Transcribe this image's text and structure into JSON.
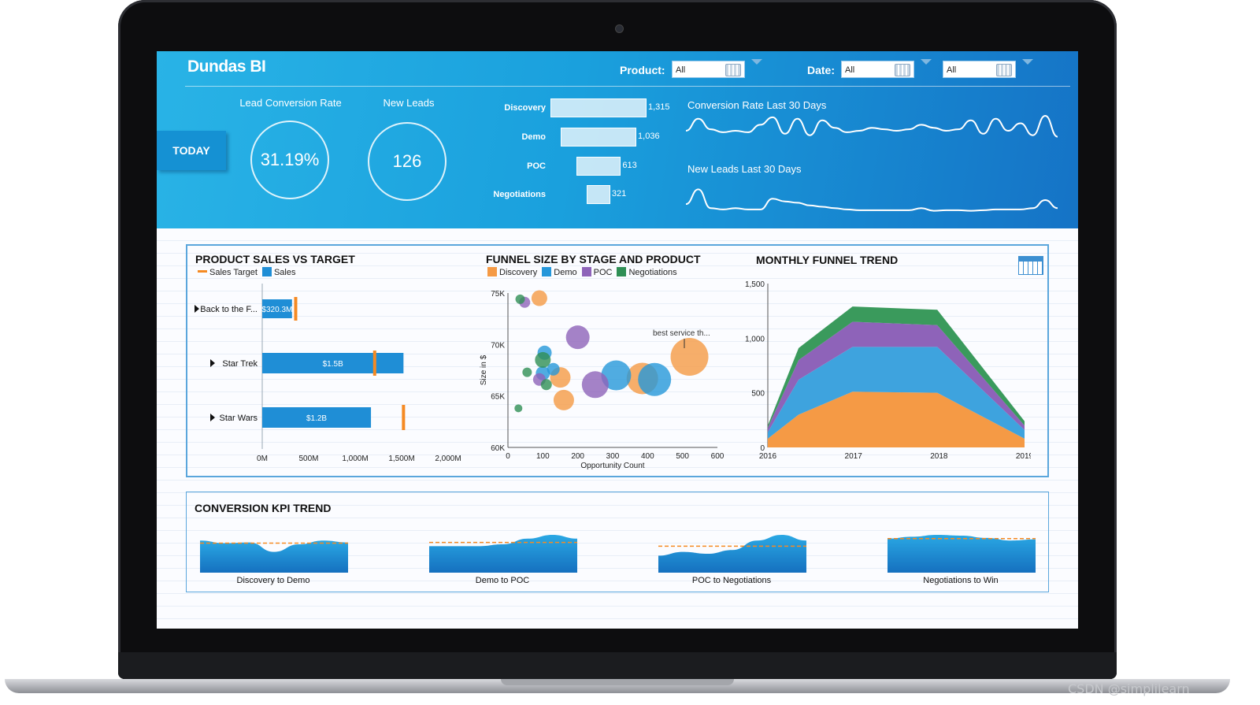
{
  "watermark": "CSDN @simplilearn",
  "header": {
    "logo": "Dundas BI",
    "filters": {
      "product_label": "Product:",
      "product_value": "All",
      "date_label": "Date:",
      "date_from": "All",
      "date_to": "All"
    },
    "today_button": "TODAY",
    "kpis": [
      {
        "title": "Lead Conversion Rate",
        "value": "31.19%"
      },
      {
        "title": "New Leads",
        "value": "126"
      }
    ],
    "funnel": [
      {
        "stage": "Discovery",
        "value": 1315,
        "label": "1,315"
      },
      {
        "stage": "Demo",
        "value": 1036,
        "label": "1,036"
      },
      {
        "stage": "POC",
        "value": 613,
        "label": "613"
      },
      {
        "stage": "Negotiations",
        "value": 321,
        "label": "321"
      }
    ],
    "sparklines": [
      {
        "title": "Conversion Rate Last 30 Days",
        "values": [
          0.5,
          0.9,
          0.55,
          0.45,
          0.5,
          0.45,
          0.7,
          0.95,
          0.4,
          0.9,
          0.35,
          0.85,
          0.6,
          0.45,
          0.5,
          0.6,
          0.55,
          0.5,
          0.55,
          0.7,
          0.6,
          0.5,
          0.55,
          0.85,
          0.4,
          0.9,
          0.5,
          0.75,
          0.35,
          1.0,
          0.3
        ]
      },
      {
        "title": "New Leads Last 30 Days",
        "values": [
          0.35,
          0.9,
          0.2,
          0.15,
          0.2,
          0.15,
          0.15,
          0.55,
          0.45,
          0.4,
          0.3,
          0.25,
          0.2,
          0.15,
          0.12,
          0.12,
          0.12,
          0.12,
          0.12,
          0.2,
          0.1,
          0.12,
          0.12,
          0.1,
          0.12,
          0.15,
          0.15,
          0.15,
          0.2,
          0.5,
          0.2
        ]
      }
    ]
  },
  "product_sales": {
    "title": "PRODUCT SALES VS TARGET",
    "legend": [
      {
        "name": "Sales Target",
        "color": "#f58a23"
      },
      {
        "name": "Sales",
        "color": "#1f8ed6"
      }
    ],
    "x_ticks": [
      "0M",
      "500M",
      "1,000M",
      "1,500M",
      "2,000M"
    ],
    "rows": [
      {
        "name": "Back to the F...",
        "label": "$320.3M",
        "sales": 320.3,
        "target": 360
      },
      {
        "name": "Star Trek",
        "label": "$1.5B",
        "sales": 1520,
        "target": 1210
      },
      {
        "name": "Star Wars",
        "label": "$1.2B",
        "sales": 1170,
        "target": 1520
      }
    ]
  },
  "funnel_size": {
    "title": "FUNNEL SIZE BY STAGE AND PRODUCT",
    "legend": [
      "Discovery",
      "Demo",
      "POC",
      "Negotiations"
    ],
    "annotation": "best service th...",
    "y_ticks": [
      "75K",
      "70K",
      "65K",
      "60K"
    ],
    "x_ticks": [
      "0",
      "100",
      "200",
      "300",
      "400",
      "500",
      "600"
    ],
    "xlabel": "Opportunity Count",
    "ylabel": "Size in $"
  },
  "monthly_trend": {
    "title": "MONTHLY FUNNEL TREND",
    "y_ticks": [
      "1,500",
      "1,000",
      "500",
      "0"
    ],
    "x_ticks": [
      "2016",
      "2017",
      "2018",
      "2019"
    ]
  },
  "kpi_trend": {
    "title": "CONVERSION KPI TREND",
    "items": [
      "Discovery to Demo",
      "Demo to POC",
      "POC to Negotiations",
      "Negotiations to Win"
    ]
  },
  "chart_data": [
    {
      "type": "bar",
      "title": "PRODUCT SALES VS TARGET",
      "categories": [
        "Back to the F...",
        "Star Trek",
        "Star Wars"
      ],
      "series": [
        {
          "name": "Sales",
          "values": [
            320.3,
            1520,
            1170
          ]
        },
        {
          "name": "Sales Target",
          "values": [
            360,
            1210,
            1520
          ]
        }
      ],
      "xlim": [
        0,
        2000
      ],
      "colors": {
        "Sales": "#1f8ed6",
        "Sales Target": "#f58a23"
      }
    },
    {
      "type": "scatter",
      "title": "FUNNEL SIZE BY STAGE AND PRODUCT",
      "xlabel": "Opportunity Count",
      "ylabel": "Size in $",
      "xlim": [
        0,
        600
      ],
      "ylim": [
        60000,
        75000
      ],
      "series": [
        {
          "name": "Discovery",
          "color": "#f59a45",
          "points": [
            [
              90,
              74500,
              10
            ],
            [
              150,
              66800,
              13
            ],
            [
              160,
              64600,
              13
            ],
            [
              385,
              66700,
              20
            ],
            [
              520,
              68800,
              24
            ]
          ]
        },
        {
          "name": "Demo",
          "color": "#2597da",
          "points": [
            [
              105,
              69200,
              9
            ],
            [
              100,
              67200,
              9
            ],
            [
              130,
              67600,
              8
            ],
            [
              310,
              67000,
              19
            ],
            [
              420,
              66600,
              21
            ]
          ]
        },
        {
          "name": "POC",
          "color": "#8e63b9",
          "points": [
            [
              48,
              74100,
              7
            ],
            [
              200,
              70700,
              15
            ],
            [
              250,
              66100,
              17
            ],
            [
              90,
              66600,
              8
            ]
          ]
        },
        {
          "name": "Negotiations",
          "color": "#2f8f55",
          "points": [
            [
              35,
              74400,
              6
            ],
            [
              100,
              68500,
              10
            ],
            [
              55,
              67300,
              6
            ],
            [
              30,
              63800,
              5
            ],
            [
              110,
              66100,
              7
            ]
          ]
        }
      ],
      "annotation": "best service th..."
    },
    {
      "type": "area",
      "title": "MONTHLY FUNNEL TREND",
      "x": [
        "2016",
        "2016.3",
        "2017",
        "2018",
        "2019"
      ],
      "ylim": [
        0,
        1500
      ],
      "series": [
        {
          "name": "Discovery",
          "color": "#f59a45",
          "values": [
            80,
            300,
            510,
            500,
            80
          ]
        },
        {
          "name": "Demo",
          "color": "#3ea3de",
          "values": [
            60,
            320,
            410,
            420,
            80
          ]
        },
        {
          "name": "POC",
          "color": "#8e63b9",
          "values": [
            40,
            180,
            230,
            200,
            40
          ]
        },
        {
          "name": "Negotiations",
          "color": "#3a9a5c",
          "values": [
            20,
            110,
            140,
            140,
            40
          ]
        }
      ]
    },
    {
      "type": "area",
      "title": "CONVERSION KPI TREND",
      "series": [
        {
          "name": "Discovery to Demo",
          "values": [
            0.85,
            0.78,
            0.8,
            0.55,
            0.75,
            0.85,
            0.8
          ],
          "target": 0.78
        },
        {
          "name": "Demo to POC",
          "values": [
            0.7,
            0.7,
            0.7,
            0.75,
            0.9,
            1.0,
            0.9
          ],
          "target": 0.8
        },
        {
          "name": "POC to Negotiations",
          "values": [
            0.45,
            0.55,
            0.5,
            0.6,
            0.85,
            1.0,
            0.85
          ],
          "target": 0.7
        },
        {
          "name": "Negotiations to Win",
          "values": [
            0.9,
            0.95,
            1.0,
            0.98,
            0.92,
            0.85,
            0.88
          ],
          "target": 0.9
        }
      ]
    }
  ]
}
